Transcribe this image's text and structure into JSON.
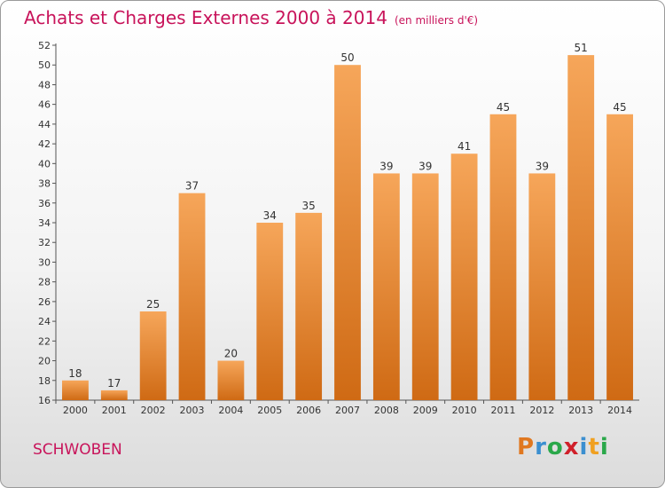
{
  "header": {
    "title": "Achats et Charges Externes 2000 à 2014",
    "subtitle": "(en milliers d'€)"
  },
  "footer": {
    "place": "SCHWOBEN",
    "logo": [
      "P",
      "r",
      "o",
      "x",
      "i",
      "t",
      "i"
    ],
    "logo_colors": [
      "#e07820",
      "#3b8fd0",
      "#2aa84a",
      "#d0202a",
      "#3b8fd0",
      "#f0a020",
      "#2aa84a"
    ]
  },
  "colors": {
    "bar_top": "#f6a65a",
    "bar_bottom": "#cf6a14",
    "text": "#c8135a"
  },
  "chart_data": {
    "type": "bar",
    "title": "Achats et Charges Externes 2000 à 2014",
    "subtitle": "(en milliers d'€)",
    "categories": [
      "2000",
      "2001",
      "2002",
      "2003",
      "2004",
      "2005",
      "2006",
      "2007",
      "2008",
      "2009",
      "2010",
      "2011",
      "2012",
      "2013",
      "2014"
    ],
    "values": [
      18,
      17,
      25,
      37,
      20,
      34,
      35,
      50,
      39,
      39,
      41,
      45,
      39,
      51,
      45
    ],
    "yticks": [
      16,
      18,
      20,
      22,
      24,
      26,
      28,
      30,
      32,
      34,
      36,
      38,
      40,
      42,
      44,
      46,
      48,
      50,
      52
    ],
    "ylim": [
      16,
      52
    ],
    "grid": false
  }
}
